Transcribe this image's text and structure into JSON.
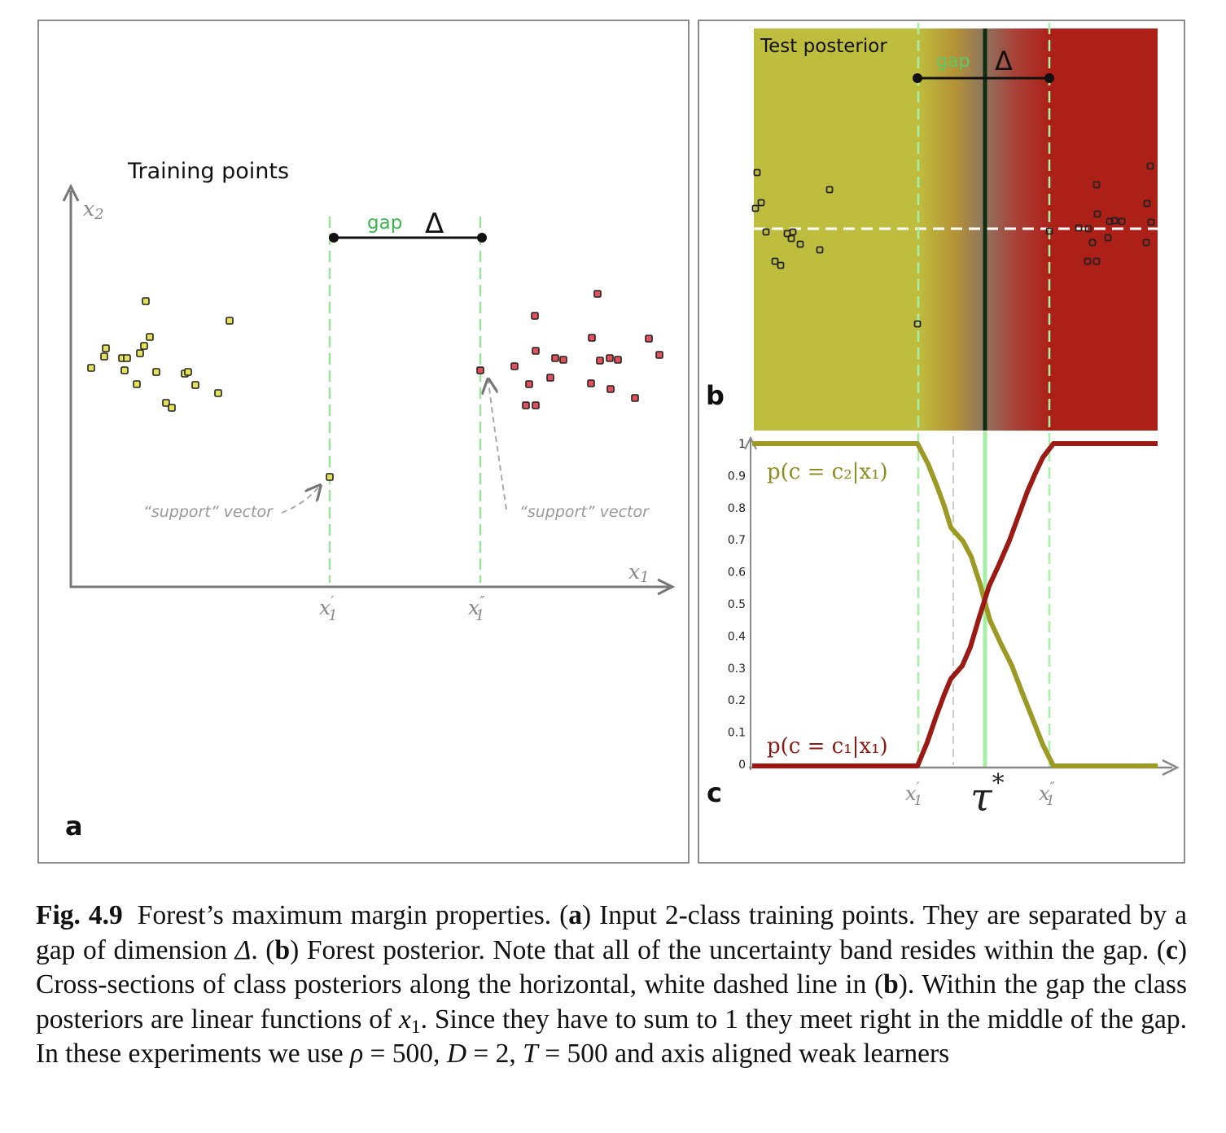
{
  "panel_a": {
    "letter": "a",
    "title": "Training points",
    "axis_x_label": "x",
    "axis_x_sub": "1",
    "axis_y_label": "x",
    "axis_y_sub": "2",
    "gap_word": "gap",
    "delta_symbol": "Δ",
    "tick_left": "x",
    "tick_left_sub": "1",
    "tick_left_prime": "′",
    "tick_right": "x",
    "tick_right_sub": "1",
    "tick_right_prime": "″",
    "support_left": "“support” vector",
    "support_right": "“support” vector",
    "colors": {
      "class2": "#e6e15a",
      "class1": "#e4505a",
      "gap_line": "#9be39b",
      "axis": "#777777"
    }
  },
  "panel_b": {
    "letter": "b",
    "title": "Test posterior",
    "gap_word": "gap",
    "delta_symbol": "Δ",
    "colors": {
      "class2_region": "#bfbd3e",
      "class1_region": "#ad2018",
      "boundary": "#0f2d12"
    }
  },
  "panel_c": {
    "letter": "c",
    "y_ticks": [
      "1",
      "0.9",
      "0.8",
      "0.7",
      "0.6",
      "0.5",
      "0.4",
      "0.3",
      "0.2",
      "0.1",
      "0"
    ],
    "label_c2": "p(c = c₂|x₁)",
    "label_c1": "p(c = c₁|x₁)",
    "tick_x1p": "x",
    "tick_x1p_sub": "1",
    "tick_x1p_prime": "′",
    "tick_tau": "τ",
    "tick_tau_star": "*",
    "tick_x1pp": "x",
    "tick_x1pp_sub": "1",
    "tick_x1pp_prime": "″",
    "colors": {
      "c2_curve": "#9c9a24",
      "c1_curve": "#9b1b14"
    }
  },
  "caption": {
    "fig_label": "Fig. 4.9",
    "t1": "Forest’s maximum margin properties. (",
    "a": "a",
    "t2": ") Input 2-class training points. They are separated by a gap of dimension ",
    "delta": "Δ",
    "t3": ". (",
    "b": "b",
    "t4": ") Forest posterior. Note that all of the uncertainty band resides within the gap. (",
    "c": "c",
    "t5": ") Cross-sections of class posteriors along the horizontal, white dashed line in (",
    "b2": "b",
    "t6": "). Within the gap the class posteriors are linear functions of ",
    "x": "x",
    "x_sub": "1",
    "t7": ". Since they have to sum to 1 they meet right in the middle of the gap. In these experiments we use ",
    "rho": "ρ",
    "t8": " = 500, ",
    "D": "D",
    "t9": " = 2, ",
    "T": "T",
    "t10": " = 500 and axis aligned weak learners"
  }
}
